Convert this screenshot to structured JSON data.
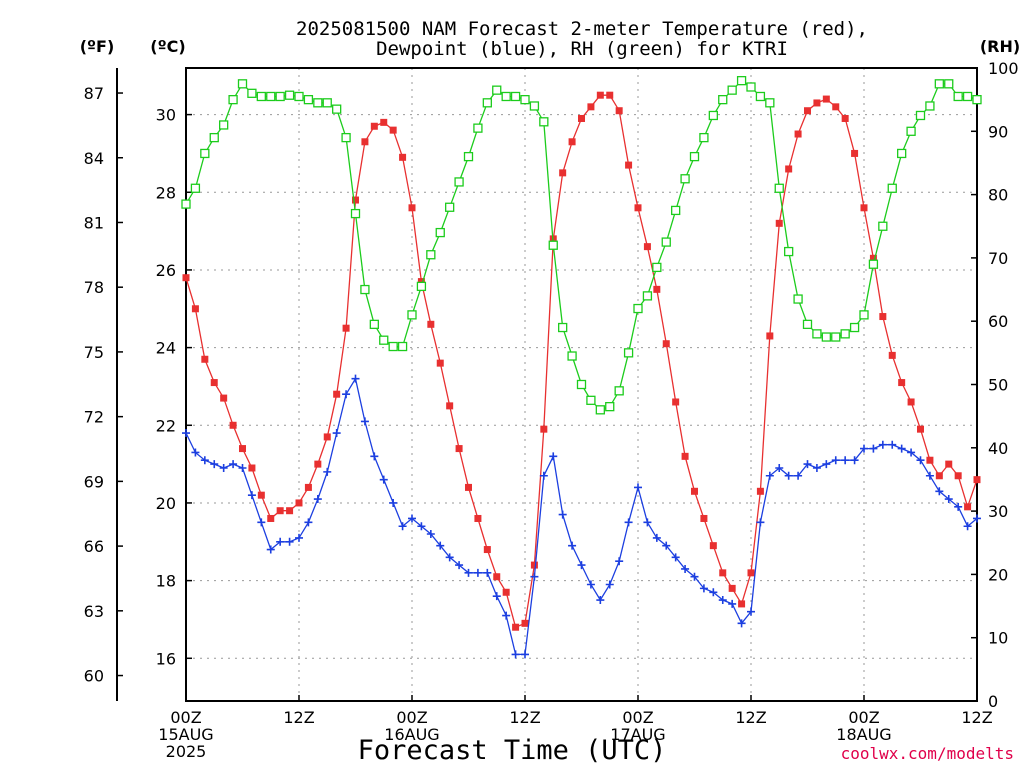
{
  "chart_data": {
    "type": "line",
    "title_line1": "2025081500 NAM Forecast 2-meter Temperature (red),",
    "title_line2": "Dewpoint (blue), RH (green) for KTRI",
    "xlabel": "Forecast Time (UTC)",
    "unit_f": "(ºF)",
    "unit_c": "(ºC)",
    "unit_rh": "(RH)",
    "credit": "coolwx.com/modelts",
    "x_ticks": [
      {
        "h": 0,
        "lines": [
          "00Z",
          "15AUG",
          "2025"
        ]
      },
      {
        "h": 12,
        "lines": [
          "12Z"
        ]
      },
      {
        "h": 24,
        "lines": [
          "00Z",
          "16AUG"
        ]
      },
      {
        "h": 36,
        "lines": [
          "12Z"
        ]
      },
      {
        "h": 48,
        "lines": [
          "00Z",
          "17AUG"
        ]
      },
      {
        "h": 60,
        "lines": [
          "12Z"
        ]
      },
      {
        "h": 72,
        "lines": [
          "00Z",
          "18AUG"
        ]
      },
      {
        "h": 84,
        "lines": [
          "12Z"
        ]
      }
    ],
    "xlim": [
      0,
      84
    ],
    "ylim_c": [
      14.9,
      31.2
    ],
    "yticks_c": [
      16,
      18,
      20,
      22,
      24,
      26,
      28,
      30
    ],
    "yticks_f": [
      60,
      63,
      66,
      69,
      72,
      75,
      78,
      81,
      84,
      87
    ],
    "ylim_rh": [
      0,
      100
    ],
    "yticks_rh": [
      0,
      10,
      20,
      30,
      40,
      50,
      60,
      70,
      80,
      90,
      100
    ],
    "grid": true,
    "series": [
      {
        "name": "Temperature",
        "color": "#e83030",
        "marker": "filled-square",
        "axis": "C",
        "values": [
          25.8,
          25.0,
          23.7,
          23.1,
          22.7,
          22.0,
          21.4,
          20.9,
          20.2,
          19.6,
          19.8,
          19.8,
          20.0,
          20.4,
          21.0,
          21.7,
          22.8,
          24.5,
          27.8,
          29.3,
          29.7,
          29.8,
          29.6,
          28.9,
          27.6,
          25.7,
          24.6,
          23.6,
          22.5,
          21.4,
          20.4,
          19.6,
          18.8,
          18.1,
          17.7,
          16.8,
          16.9,
          18.4,
          21.9,
          26.8,
          28.5,
          29.3,
          29.9,
          30.2,
          30.5,
          30.5,
          30.1,
          28.7,
          27.6,
          26.6,
          25.5,
          24.1,
          22.6,
          21.2,
          20.3,
          19.6,
          18.9,
          18.2,
          17.8,
          17.4,
          18.2,
          20.3,
          24.3,
          27.2,
          28.6,
          29.5,
          30.1,
          30.3,
          30.4,
          30.2,
          29.9,
          29.0,
          27.6,
          26.3,
          24.8,
          23.8,
          23.1,
          22.6,
          21.9,
          21.1,
          20.7,
          21.0,
          20.7,
          19.9,
          20.6
        ]
      },
      {
        "name": "Dewpoint",
        "color": "#1c3fe0",
        "marker": "plus",
        "axis": "C",
        "values": [
          21.8,
          21.3,
          21.1,
          21.0,
          20.9,
          21.0,
          20.9,
          20.2,
          19.5,
          18.8,
          19.0,
          19.0,
          19.1,
          19.5,
          20.1,
          20.8,
          21.8,
          22.8,
          23.2,
          22.1,
          21.2,
          20.6,
          20.0,
          19.4,
          19.6,
          19.4,
          19.2,
          18.9,
          18.6,
          18.4,
          18.2,
          18.2,
          18.2,
          17.6,
          17.1,
          16.1,
          16.1,
          18.1,
          20.7,
          21.2,
          19.7,
          18.9,
          18.4,
          17.9,
          17.5,
          17.9,
          18.5,
          19.5,
          20.4,
          19.5,
          19.1,
          18.9,
          18.6,
          18.3,
          18.1,
          17.8,
          17.7,
          17.5,
          17.4,
          16.9,
          17.2,
          19.5,
          20.7,
          20.9,
          20.7,
          20.7,
          21.0,
          20.9,
          21.0,
          21.1,
          21.1,
          21.1,
          21.4,
          21.4,
          21.5,
          21.5,
          21.4,
          21.3,
          21.1,
          20.7,
          20.3,
          20.1,
          19.9,
          19.4,
          19.6
        ]
      },
      {
        "name": "RH",
        "color": "#1ccc1c",
        "marker": "open-square",
        "axis": "RH",
        "values": [
          78.5,
          81.0,
          86.5,
          89.0,
          91.0,
          95.0,
          97.5,
          96.0,
          95.5,
          95.5,
          95.5,
          95.7,
          95.5,
          95.0,
          94.5,
          94.5,
          93.5,
          89.0,
          77.0,
          65.0,
          59.5,
          57.0,
          56.0,
          56.0,
          61.0,
          65.5,
          70.5,
          74.0,
          78.0,
          82.0,
          86.0,
          90.5,
          94.5,
          96.5,
          95.5,
          95.5,
          95.0,
          94.0,
          91.5,
          72.0,
          59.0,
          54.5,
          50.0,
          47.5,
          46.0,
          46.5,
          49.0,
          55.0,
          62.0,
          64.0,
          68.5,
          72.5,
          77.5,
          82.5,
          86.0,
          89.0,
          92.5,
          95.0,
          96.5,
          98.0,
          97.0,
          95.5,
          94.5,
          81.0,
          71.0,
          63.5,
          59.5,
          58.0,
          57.5,
          57.5,
          58.0,
          59.0,
          61.0,
          69.0,
          75.0,
          81.0,
          86.5,
          90.0,
          92.5,
          94.0,
          97.5,
          97.5,
          95.5,
          95.5,
          95.0
        ]
      }
    ]
  }
}
